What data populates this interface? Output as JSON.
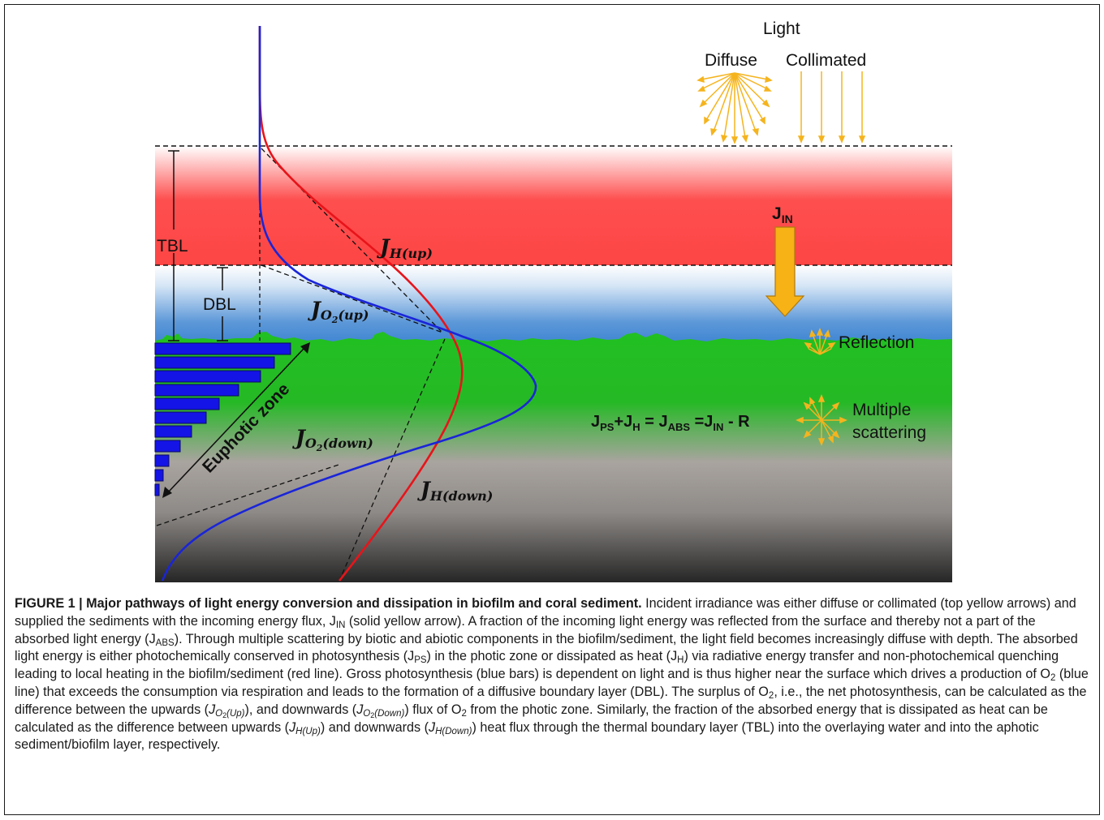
{
  "figure": {
    "light_label": "Light",
    "diffuse_label": "Diffuse",
    "collimated_label": "Collimated",
    "tbl_label": "TBL",
    "dbl_label": "DBL",
    "jin_label": "J",
    "jin_sub": "IN",
    "reflection_label": "Reflection",
    "multiple_label_1": "Multiple",
    "multiple_label_2": "scattering",
    "euphotic_label": "Euphotic zone",
    "jh_up_main": "J",
    "jh_up_sub": "H(up)",
    "jo2_up_main": "J",
    "jo2_up_sub": "O",
    "jo2_up_sub2": "2",
    "jo2_up_tail": "(up)",
    "jo2_down_main": "J",
    "jo2_down_sub": "O",
    "jo2_down_sub2": "2",
    "jo2_down_tail": "(down)",
    "jh_down_main": "J",
    "jh_down_sub": "H(down)",
    "equation": {
      "p1": "J",
      "s1": "PS",
      "p2": "+J",
      "s2": "H",
      "p3": " = J",
      "s3": "ABS",
      "p4": " =J",
      "s4": "IN",
      "p5": " - R"
    },
    "colors": {
      "heat_line": "#e8141a",
      "oxygen_line": "#1a25d8",
      "bars": "#1414e6",
      "light_arrows": "#f5b41e",
      "jin_arrow": "#f7b216",
      "tbl_zone": "#fd4545",
      "dbl_zone": "#3b83d2",
      "sediment": "#22c022"
    },
    "icons": [
      "diffuse-light-icon",
      "collimated-light-icon",
      "reflection-icon",
      "scattering-icon"
    ]
  },
  "caption": {
    "title": "FIGURE 1 | Major pathways of light energy conversion and dissipation in biofilm and coral sediment.",
    "t1": " Incident irradiance was either diffuse or collimated (top yellow arrows) and supplied the sediments with the incoming energy flux, J",
    "t1_sub": "IN",
    "t2": " (solid yellow arrow). A fraction of the incoming light energy was reflected from the surface and thereby not a part of the absorbed light energy (J",
    "t2_sub": "ABS",
    "t3": "). Through multiple scattering by biotic and abiotic components in the biofilm/sediment, the light field becomes increasingly diffuse with depth. The absorbed light energy is either photochemically conserved in photosynthesis (J",
    "t3_sub": "PS",
    "t4": ") in the photic zone or dissipated as heat (J",
    "t4_sub": "H",
    "t5": ") via radiative energy transfer and non-photochemical quenching leading to local heating in the biofilm/sediment (red line). Gross photosynthesis (blue bars) is dependent on light and is thus higher near the surface which drives a production of O",
    "t5_sub": "2",
    "t6": " (blue line) that exceeds the consumption via respiration and leads to the formation of a diffusive boundary layer (DBL). The surplus of O",
    "t6_sub": "2",
    "t7": ", i.e., the net photosynthesis, can be calculated as the difference between the upwards (",
    "t7_j": "J",
    "t7_sub": "O",
    "t7_sub2": "2",
    "t7_tail": "(Up)",
    "t8": "), and downwards (",
    "t8_j": "J",
    "t8_sub": "O",
    "t8_sub2": "2",
    "t8_tail": "(Down)",
    "t9": ") flux of O",
    "t9_sub": "2",
    "t10": " from the photic zone. Similarly, the fraction of the absorbed energy that is dissipated as heat can be calculated as the difference between upwards (",
    "t10_j": "J",
    "t10_sub": "H(Up)",
    "t11": ") and downwards (",
    "t11_j": "J",
    "t11_sub": "H(Down)",
    "t12": ") heat flux through the thermal boundary layer (TBL) into the overlaying water and into the aphotic sediment/biofilm layer, respectively."
  }
}
